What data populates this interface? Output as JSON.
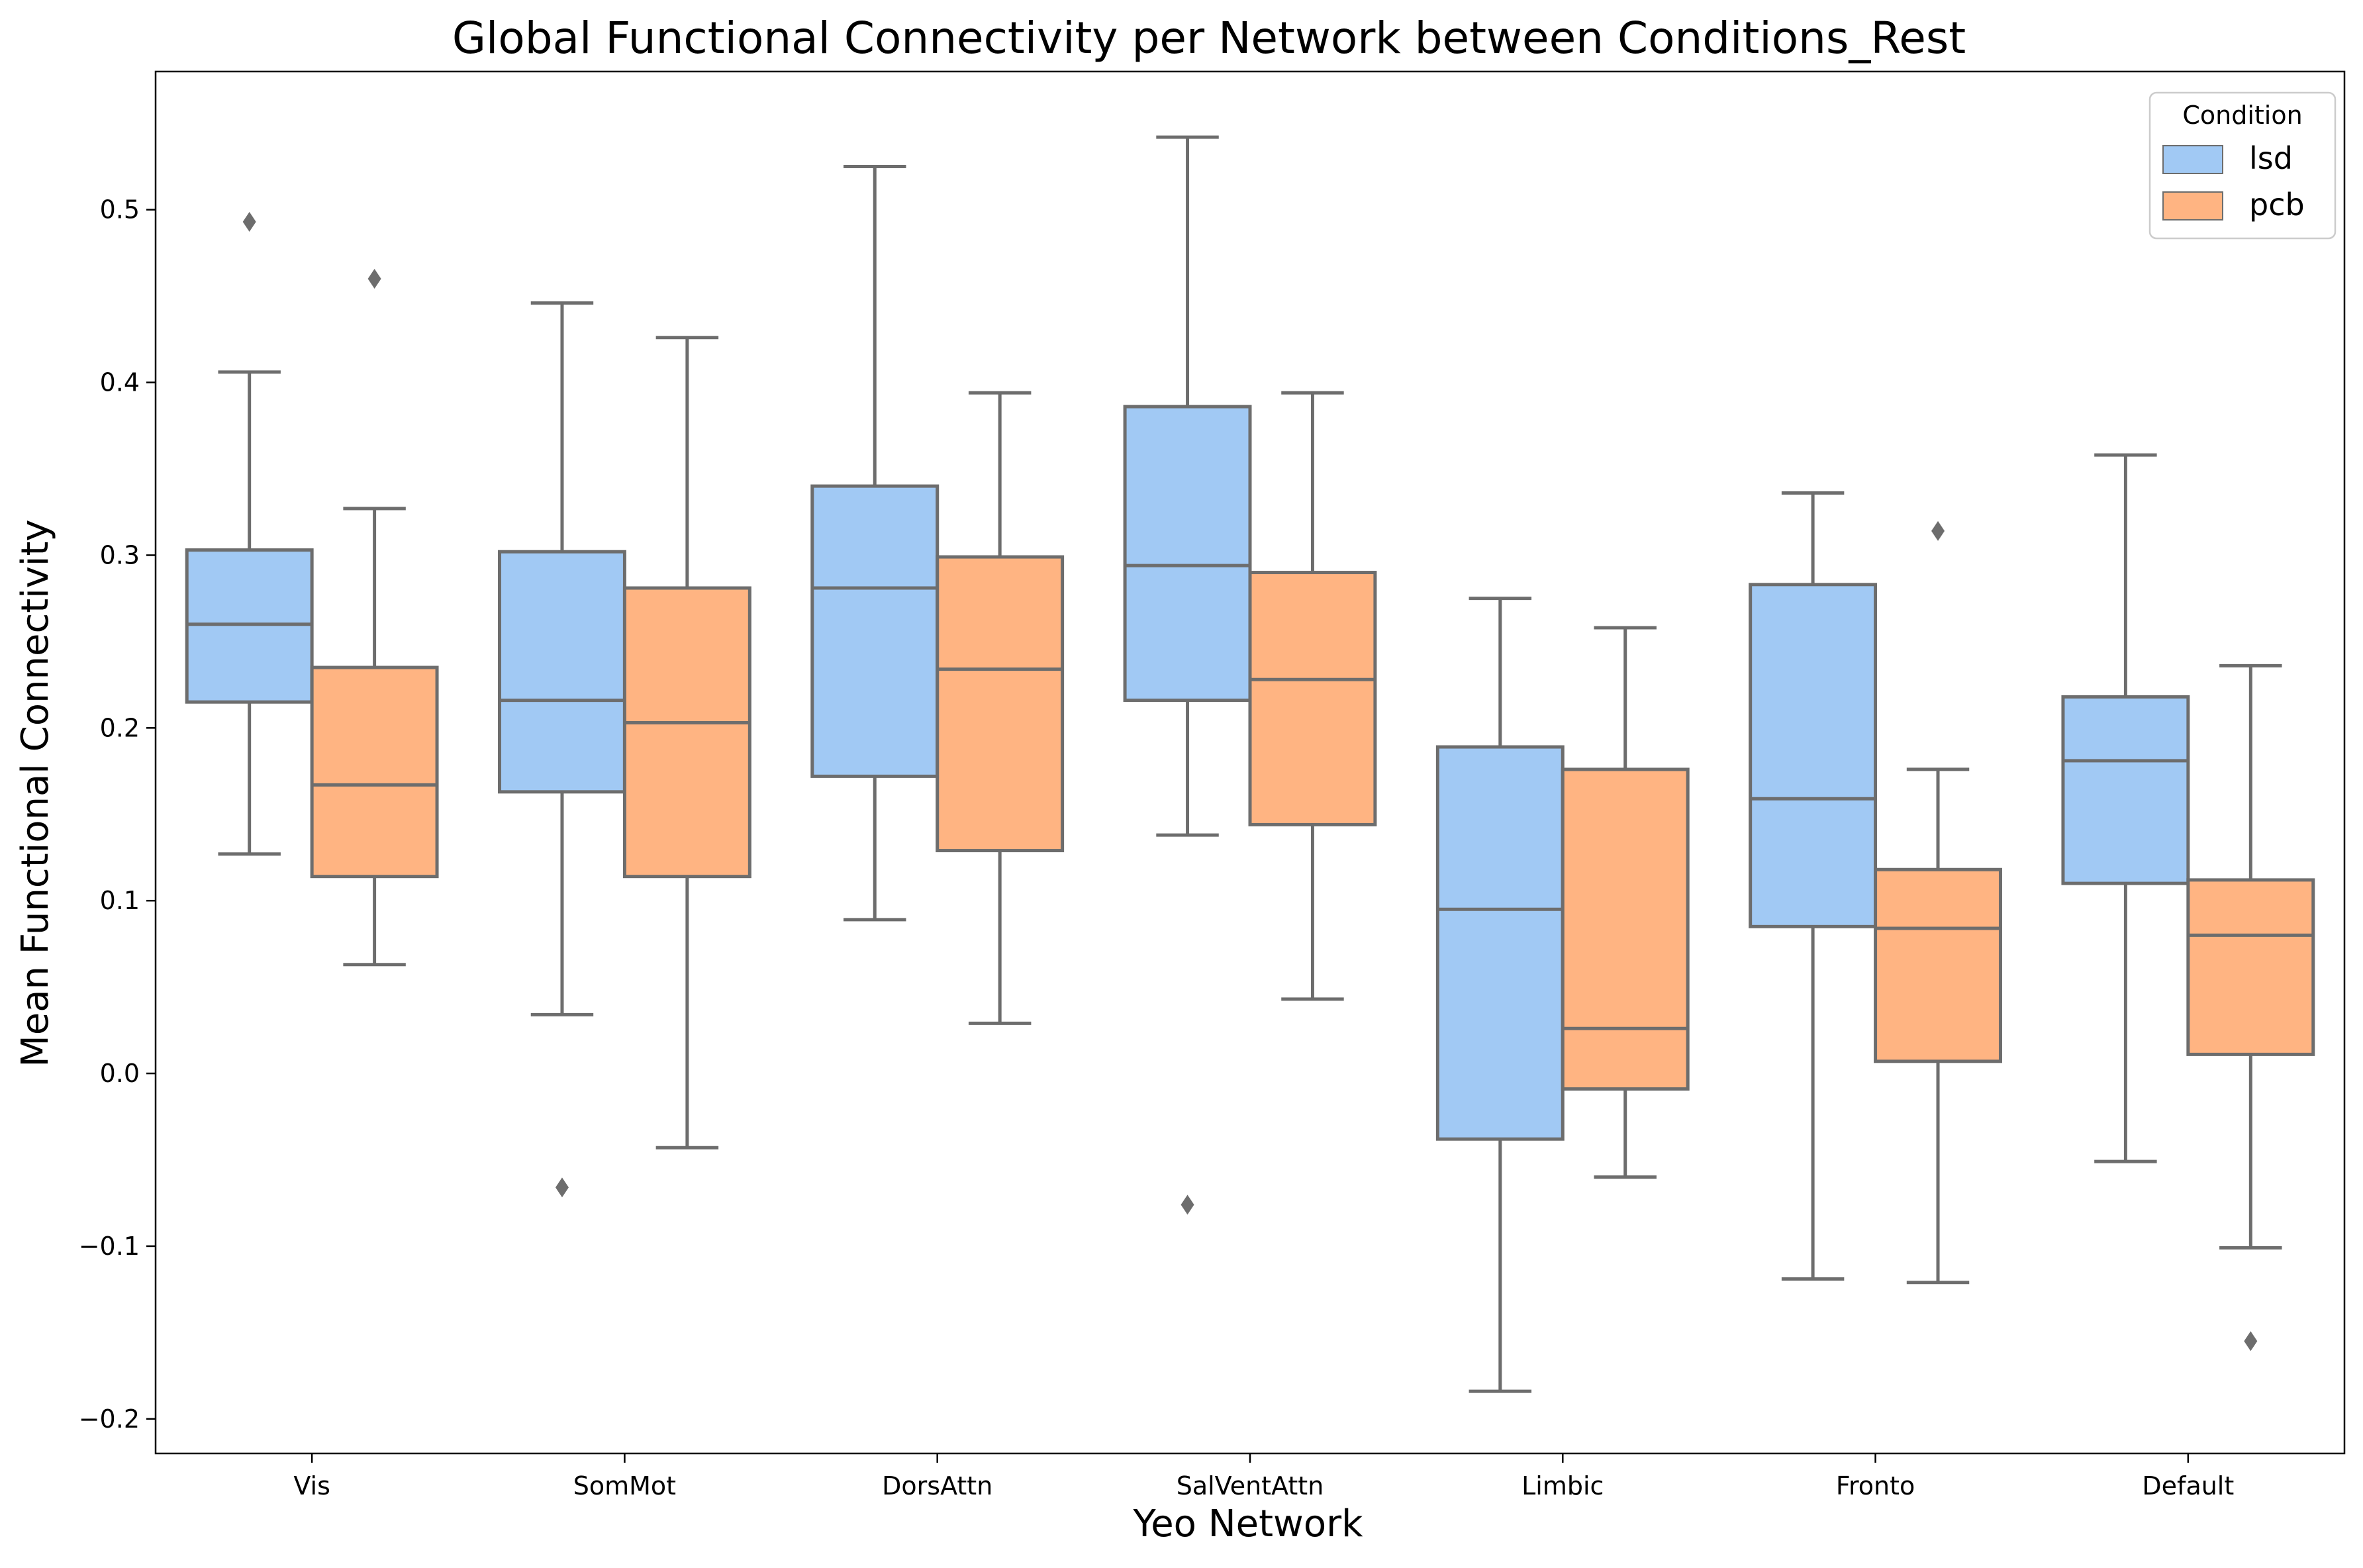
{
  "chart_data": {
    "type": "boxplot",
    "title": "Global Functional Connectivity per Network between Conditions_Rest",
    "xlabel": "Yeo Network",
    "ylabel": "Mean Functional Connectivity",
    "ylim": [
      -0.22,
      0.58
    ],
    "yticks": [
      -0.2,
      -0.1,
      0.0,
      0.1,
      0.2,
      0.3,
      0.4,
      0.5
    ],
    "ytick_labels": [
      "−0.2",
      "−0.1",
      "0.0",
      "0.1",
      "0.2",
      "0.3",
      "0.4",
      "0.5"
    ],
    "categories": [
      "Vis",
      "SomMot",
      "DorsAttn",
      "SalVentAttn",
      "Limbic",
      "Fronto",
      "Default"
    ],
    "legend": {
      "title": "Condition",
      "position": "top-right"
    },
    "grid": false,
    "series": [
      {
        "name": "lsd",
        "color": "#a1c9f4",
        "boxes": [
          {
            "whisker_low": 0.127,
            "q1": 0.215,
            "median": 0.26,
            "q3": 0.303,
            "whisker_high": 0.406,
            "outliers": [
              0.493
            ]
          },
          {
            "whisker_low": 0.034,
            "q1": 0.163,
            "median": 0.216,
            "q3": 0.302,
            "whisker_high": 0.446,
            "outliers": [
              -0.066
            ]
          },
          {
            "whisker_low": 0.089,
            "q1": 0.172,
            "median": 0.281,
            "q3": 0.34,
            "whisker_high": 0.525,
            "outliers": []
          },
          {
            "whisker_low": 0.138,
            "q1": 0.216,
            "median": 0.294,
            "q3": 0.386,
            "whisker_high": 0.542,
            "outliers": [
              -0.076
            ]
          },
          {
            "whisker_low": -0.184,
            "q1": -0.038,
            "median": 0.095,
            "q3": 0.189,
            "whisker_high": 0.275,
            "outliers": []
          },
          {
            "whisker_low": -0.119,
            "q1": 0.085,
            "median": 0.159,
            "q3": 0.283,
            "whisker_high": 0.336,
            "outliers": []
          },
          {
            "whisker_low": -0.051,
            "q1": 0.11,
            "median": 0.181,
            "q3": 0.218,
            "whisker_high": 0.358,
            "outliers": []
          }
        ]
      },
      {
        "name": "pcb",
        "color": "#ffb482",
        "boxes": [
          {
            "whisker_low": 0.063,
            "q1": 0.114,
            "median": 0.167,
            "q3": 0.235,
            "whisker_high": 0.327,
            "outliers": [
              0.46
            ]
          },
          {
            "whisker_low": -0.043,
            "q1": 0.114,
            "median": 0.203,
            "q3": 0.281,
            "whisker_high": 0.426,
            "outliers": []
          },
          {
            "whisker_low": 0.029,
            "q1": 0.129,
            "median": 0.234,
            "q3": 0.299,
            "whisker_high": 0.394,
            "outliers": []
          },
          {
            "whisker_low": 0.043,
            "q1": 0.144,
            "median": 0.228,
            "q3": 0.29,
            "whisker_high": 0.394,
            "outliers": []
          },
          {
            "whisker_low": -0.06,
            "q1": -0.009,
            "median": 0.026,
            "q3": 0.176,
            "whisker_high": 0.258,
            "outliers": []
          },
          {
            "whisker_low": -0.121,
            "q1": 0.007,
            "median": 0.084,
            "q3": 0.118,
            "whisker_high": 0.176,
            "outliers": [
              0.314
            ]
          },
          {
            "whisker_low": -0.101,
            "q1": 0.011,
            "median": 0.08,
            "q3": 0.112,
            "whisker_high": 0.236,
            "outliers": [
              -0.155
            ]
          }
        ]
      }
    ]
  }
}
